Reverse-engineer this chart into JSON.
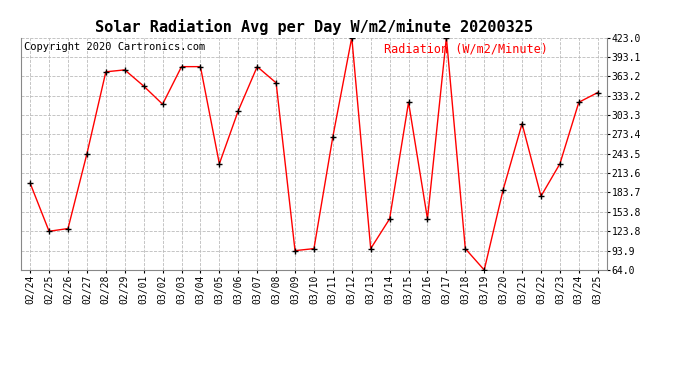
{
  "title": "Solar Radiation Avg per Day W/m2/minute 20200325",
  "copyright": "Copyright 2020 Cartronics.com",
  "ylabel": "Radiation (W/m2/Minute)",
  "dates": [
    "02/24",
    "02/25",
    "02/26",
    "02/27",
    "02/28",
    "02/29",
    "03/01",
    "03/02",
    "03/03",
    "03/04",
    "03/05",
    "03/06",
    "03/07",
    "03/08",
    "03/09",
    "03/10",
    "03/11",
    "03/12",
    "03/13",
    "03/14",
    "03/15",
    "03/16",
    "03/17",
    "03/18",
    "03/19",
    "03/20",
    "03/21",
    "03/22",
    "03/23",
    "03/24",
    "03/25"
  ],
  "values": [
    198.0,
    123.8,
    128.0,
    243.5,
    370.0,
    373.0,
    348.0,
    320.0,
    378.0,
    378.0,
    228.0,
    310.0,
    378.0,
    353.0,
    93.9,
    97.0,
    270.0,
    423.0,
    97.0,
    143.0,
    323.0,
    143.0,
    423.0,
    97.0,
    64.0,
    188.0,
    290.0,
    178.0,
    228.0,
    323.0,
    338.0
  ],
  "line_color": "red",
  "marker_color": "black",
  "marker": "+",
  "background_color": "#ffffff",
  "grid_color": "#bbbbbb",
  "ylim": [
    64.0,
    423.0
  ],
  "yticks": [
    64.0,
    93.9,
    123.8,
    153.8,
    183.7,
    213.6,
    243.5,
    273.4,
    303.3,
    333.2,
    363.2,
    393.1,
    423.0
  ],
  "title_fontsize": 11,
  "copyright_fontsize": 7.5,
  "ylabel_fontsize": 8.5,
  "tick_fontsize": 7
}
